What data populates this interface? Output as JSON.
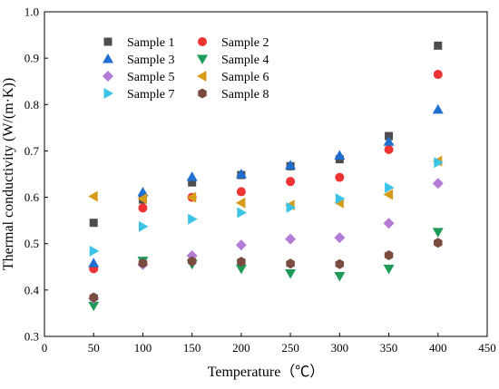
{
  "chart_data": {
    "type": "scatter",
    "xlabel": "Temperature（℃）",
    "ylabel": "Thermal conductivity (W/(m·K))",
    "xlim": [
      0,
      450
    ],
    "ylim": [
      0.3,
      1.0
    ],
    "xticks": [
      0,
      50,
      100,
      150,
      200,
      250,
      300,
      350,
      400,
      450
    ],
    "yticks": [
      0.3,
      0.4,
      0.5,
      0.6,
      0.7,
      0.8,
      0.9,
      1.0
    ],
    "grid": false,
    "legend_position": "top-left",
    "x": [
      50,
      100,
      150,
      200,
      250,
      300,
      350,
      400
    ],
    "series": [
      {
        "name": "Sample 1",
        "marker": "square",
        "color": "#4d4d4d",
        "values": [
          0.545,
          0.595,
          0.632,
          0.648,
          0.667,
          0.682,
          0.732,
          0.927
        ]
      },
      {
        "name": "Sample 2",
        "marker": "circle",
        "color": "#ee3333",
        "values": [
          0.446,
          0.577,
          0.6,
          0.612,
          0.634,
          0.643,
          0.703,
          0.865
        ]
      },
      {
        "name": "Sample 3",
        "marker": "triangle-up",
        "color": "#1f6fd1",
        "values": [
          0.458,
          0.611,
          0.644,
          0.65,
          0.669,
          0.69,
          0.72,
          0.789
        ]
      },
      {
        "name": "Sample 4",
        "marker": "triangle-down",
        "color": "#1e9b59",
        "values": [
          0.366,
          0.463,
          0.456,
          0.446,
          0.436,
          0.43,
          0.446,
          0.525
        ]
      },
      {
        "name": "Sample 5",
        "marker": "diamond",
        "color": "#b57ad6",
        "values": [
          0.382,
          0.455,
          0.474,
          0.497,
          0.51,
          0.513,
          0.544,
          0.63
        ]
      },
      {
        "name": "Sample 6",
        "marker": "triangle-left",
        "color": "#d79b1a",
        "values": [
          0.602,
          0.597,
          0.6,
          0.588,
          0.583,
          0.588,
          0.606,
          0.678
        ]
      },
      {
        "name": "Sample 7",
        "marker": "triangle-right",
        "color": "#3cc4e8",
        "values": [
          0.484,
          0.537,
          0.553,
          0.567,
          0.578,
          0.597,
          0.621,
          0.675
        ]
      },
      {
        "name": "Sample 8",
        "marker": "hexagon",
        "color": "#7a4b3f",
        "values": [
          0.384,
          0.458,
          0.462,
          0.461,
          0.457,
          0.456,
          0.475,
          0.502
        ]
      }
    ]
  }
}
